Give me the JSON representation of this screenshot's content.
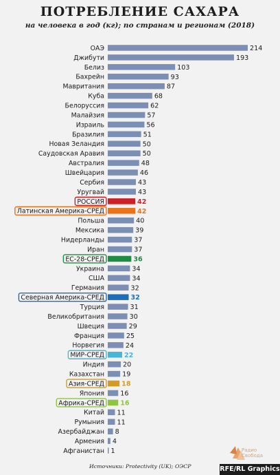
{
  "header": {
    "title": "ПОТРЕБЛЕНИЕ САХАРА",
    "subtitle": "на человека в год (кг); по странам и регионам (2018)"
  },
  "footer": {
    "source": "Источники: Protectivity (UK); ОЭСР",
    "logo_line1": "Радио",
    "logo_line2": "Свобода",
    "badge": "RFE/RL Graphics"
  },
  "colors": {
    "bar_default": "#7b8eb4",
    "russia": "#cc1f28",
    "latin_america": "#e8731b",
    "eu": "#1f8c45",
    "north_america": "#1d6fb8",
    "world": "#45b6d8",
    "asia": "#d39b20",
    "africa": "#8ec63f"
  },
  "chart_data": {
    "type": "bar",
    "orientation": "horizontal",
    "title": "ПОТРЕБЛЕНИЕ САХАРА",
    "subtitle": "на человека в год (кг); по странам и регионам (2018)",
    "xlabel": "",
    "ylabel": "",
    "xlim": [
      0,
      214
    ],
    "grid": false,
    "categories": [
      "ОАЭ",
      "Джибути",
      "Белиз",
      "Бахрейн",
      "Мавритания",
      "Куба",
      "Белоруссия",
      "Малайзия",
      "Израиль",
      "Бразилия",
      "Новая Зеландия",
      "Саудовская Аравия",
      "Австралия",
      "Швейцария",
      "Сербия",
      "Уругвай",
      "РОССИЯ",
      "Латинская Америка-СРЕД",
      "Польша",
      "Мексика",
      "Нидерланды",
      "Иран",
      "ЕС-28-СРЕД",
      "Украина",
      "США",
      "Германия",
      "Северная Америка-СРЕД",
      "Турция",
      "Великобритания",
      "Швеция",
      "Франция",
      "Норвегия",
      "МИР-СРЕД",
      "Индия",
      "Казахстан",
      "Азия-СРЕД",
      "Япония",
      "Африка-СРЕД",
      "Китай",
      "Румыния",
      "Азербайджан",
      "Армения",
      "Афганистан"
    ],
    "values": [
      214,
      193,
      103,
      93,
      87,
      68,
      62,
      57,
      56,
      51,
      50,
      50,
      48,
      46,
      43,
      43,
      42,
      42,
      40,
      39,
      37,
      37,
      36,
      34,
      34,
      32,
      32,
      31,
      30,
      29,
      25,
      24,
      22,
      20,
      19,
      18,
      16,
      16,
      11,
      11,
      8,
      4,
      1
    ],
    "highlights": {
      "РОССИЯ": "#cc1f28",
      "Латинская Америка-СРЕД": "#e8731b",
      "ЕС-28-СРЕД": "#1f8c45",
      "Северная Америка-СРЕД": "#1d6fb8",
      "МИР-СРЕД": "#45b6d8",
      "Азия-СРЕД": "#d39b20",
      "Африка-СРЕД": "#8ec63f"
    }
  }
}
